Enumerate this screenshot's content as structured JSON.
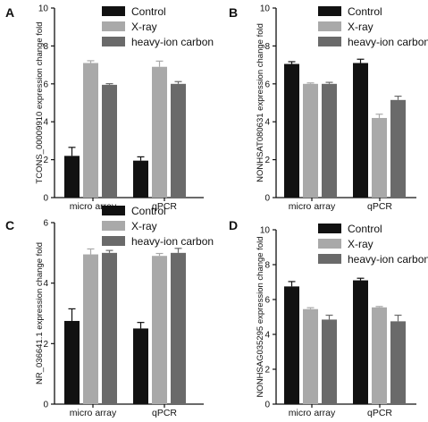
{
  "figure": {
    "legend_labels": [
      "Control",
      "X-ray",
      "heavy-ion carbon"
    ],
    "colors": {
      "Control": "#111111",
      "X-ray": "#a9a9a9",
      "heavy-ion carbon": "#6a6a6a"
    }
  },
  "chart_data": [
    {
      "panel": "A",
      "type": "bar",
      "ylabel": "TCONS_00009910 expression change fold",
      "categories": [
        "micro array",
        "qPCR"
      ],
      "ylim": [
        0,
        10
      ],
      "yticks": [
        0,
        2,
        4,
        6,
        8,
        10
      ],
      "legend": "top",
      "series": [
        {
          "name": "Control",
          "values": [
            2.2,
            1.95
          ],
          "errors": [
            0.45,
            0.2
          ]
        },
        {
          "name": "X-ray",
          "values": [
            7.1,
            6.9
          ],
          "errors": [
            0.12,
            0.3
          ]
        },
        {
          "name": "heavy-ion carbon",
          "values": [
            5.95,
            6.0
          ],
          "errors": [
            0.06,
            0.12
          ]
        }
      ]
    },
    {
      "panel": "B",
      "type": "bar",
      "ylabel": "NONHSAT080631 expression change fold",
      "categories": [
        "micro array",
        "qPCR"
      ],
      "ylim": [
        0,
        10
      ],
      "yticks": [
        0,
        2,
        4,
        6,
        8,
        10
      ],
      "legend": "top",
      "series": [
        {
          "name": "Control",
          "values": [
            7.05,
            7.1
          ],
          "errors": [
            0.12,
            0.2
          ]
        },
        {
          "name": "X-ray",
          "values": [
            6.0,
            4.2
          ],
          "errors": [
            0.05,
            0.2
          ]
        },
        {
          "name": "heavy-ion carbon",
          "values": [
            6.0,
            5.15
          ],
          "errors": [
            0.08,
            0.2
          ]
        }
      ]
    },
    {
      "panel": "C",
      "type": "bar",
      "ylabel": "NR_036641.1 expression change fold",
      "categories": [
        "micro array",
        "qPCR"
      ],
      "ylim": [
        0,
        6
      ],
      "yticks": [
        0,
        2,
        4,
        6
      ],
      "legend": "top",
      "series": [
        {
          "name": "Control",
          "values": [
            2.75,
            2.5
          ],
          "errors": [
            0.4,
            0.2
          ]
        },
        {
          "name": "X-ray",
          "values": [
            4.95,
            4.9
          ],
          "errors": [
            0.18,
            0.08
          ]
        },
        {
          "name": "heavy-ion carbon",
          "values": [
            5.0,
            5.0
          ],
          "errors": [
            0.08,
            0.15
          ]
        }
      ]
    },
    {
      "panel": "D",
      "type": "bar",
      "ylabel": "NONHSAG035295 expression change fold",
      "categories": [
        "micro array",
        "qPCR"
      ],
      "ylim": [
        0,
        10
      ],
      "yticks": [
        0,
        2,
        4,
        6,
        8,
        10
      ],
      "legend": "top",
      "series": [
        {
          "name": "Control",
          "values": [
            6.75,
            7.1
          ],
          "errors": [
            0.28,
            0.12
          ]
        },
        {
          "name": "X-ray",
          "values": [
            5.45,
            5.55
          ],
          "errors": [
            0.08,
            0.05
          ]
        },
        {
          "name": "heavy-ion carbon",
          "values": [
            4.85,
            4.75
          ],
          "errors": [
            0.25,
            0.35
          ]
        }
      ]
    }
  ]
}
